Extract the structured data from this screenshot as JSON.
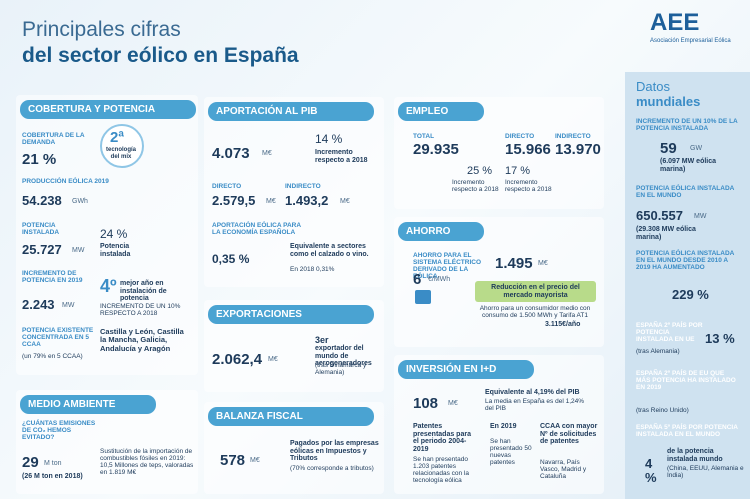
{
  "header": {
    "title_line1": "Principales cifras",
    "title_line2": "del sector eólico en España",
    "logo": "AEE",
    "logo_subtitle": "Asociación Empresarial Eólica"
  },
  "cobertura": {
    "title": "COBERTURA Y POTENCIA",
    "demand_label": "COBERTURA DE LA DEMANDA",
    "demand_value": "21 %",
    "mix_rank": "2ª",
    "mix_text": "tecnología del mix",
    "production_label": "PRODUCCIÓN EÓLICA 2019",
    "production_value": "54.238",
    "production_unit": "GWh",
    "power_label": "POTENCIA INSTALADA",
    "power_value": "25.727",
    "power_unit": "MW",
    "power_pct": "24 %",
    "power_pct_text": "Potencia instalada",
    "increase_label": "INCREMENTO DE POTENCIA EN 2019",
    "increase_value": "2.243",
    "increase_unit": "MW",
    "best_rank": "4º",
    "best_text": "mejor año en instalación de potencia",
    "increase_note": "INCREMENTO DE UN 10% RESPECTO A 2018",
    "existing_label": "POTENCIA EXISTENTE CONCENTRADA EN 5 CCAA",
    "existing_note": "(un 79% en 5 CCAA)",
    "regions": "Castilla y León, Castilla la Mancha, Galicia, Andalucía y Aragón"
  },
  "medio_ambiente": {
    "title": "MEDIO AMBIENTE",
    "question": "¿CUÁNTAS EMISIONES DE CO₂ HEMOS EVITADO?",
    "value": "29",
    "unit": "M ton",
    "previous": "(26 M ton en 2018)",
    "substitution": "Sustitución de la importación de combustibles fósiles en 2019: 10,5 Millones de teps, valoradas en 1.819 M€"
  },
  "pib": {
    "title": "APORTACIÓN AL PIB",
    "value": "4.073",
    "unit": "M€",
    "growth": "14 %",
    "growth_text": "Incremento respecto a 2018",
    "direct_label": "DIRECTO",
    "direct_value": "2.579,5",
    "direct_unit": "M€",
    "indirect_label": "INDIRECTO",
    "indirect_value": "1.493,2",
    "indirect_unit": "M€",
    "share_label": "APORTACIÓN EÓLICA PARA LA ECONOMÍA ESPAÑOLA",
    "share_value": "0,35 %",
    "share_text": "Equivalente a sectores como el calzado o vino.",
    "share_previous": "En 2018 0,31%"
  },
  "exportaciones": {
    "title": "EXPORTACIONES",
    "value": "2.062,4",
    "unit": "M€",
    "rank": "3er",
    "rank_text": "exportador del mundo de aerogeneradores",
    "rank_note": "(tras Dinamarca y Alemania)"
  },
  "balanza": {
    "title": "BALANZA FISCAL",
    "value": "578",
    "unit": "M€",
    "text": "Pagados por las empresas eólicas en Impuestos y Tributos",
    "note": "(70% corresponde a tributos)"
  },
  "empleo": {
    "title": "EMPLEO",
    "total_label": "TOTAL",
    "total_value": "29.935",
    "total_growth": "25 %",
    "total_growth_text": "Incremento respecto a 2018",
    "direct_label": "DIRECTO",
    "direct_value": "15.966",
    "indirect_label": "INDIRECTO",
    "indirect_value": "13.970",
    "direct_growth": "17 %",
    "direct_growth_text": "Incremento respecto a 2018"
  },
  "ahorro": {
    "title": "AHORRO",
    "label": "AHORRO PARA EL SISTEMA ELÉCTRICO DERIVADO DE LA EÓLICA",
    "value": "1.495",
    "unit": "M€",
    "price_value": "6",
    "price_unit": "€/MWh",
    "price_text": "Reducción en el precio del mercado mayorista",
    "consumer_text": "Ahorro para un consumidor medio con consumo de 1.500 MWh y Tarifa AT1",
    "consumer_value": "3.115€/año"
  },
  "inversion": {
    "title": "INVERSIÓN EN I+D",
    "value": "108",
    "unit": "M€",
    "equivalent": "Equivalente al 4,19% del PIB",
    "average": "La media en España es del 1,24% del PIB",
    "patents_label": "Patentes presentadas para el periodo 2004-2019",
    "patents_text": "Se han presentado 1.203 patentes relacionadas con la tecnología eólica",
    "year_label": "En 2019",
    "year_text": "Se han presentado 50 nuevas patentes",
    "regions_label": "CCAA con mayor Nº de solicitudes de patentes",
    "regions_text": "Navarra, País Vasco, Madrid y Cataluña"
  },
  "mundial": {
    "title_line1": "Datos",
    "title_line2": "mundiales",
    "increase_label": "INCREMENTO DE UN 10% DE LA POTENCIA INSTALADA",
    "increase_value": "59",
    "increase_unit": "GW",
    "increase_note": "(6.097 MW eólica marina)",
    "power_label": "POTENCIA EÓLICA INSTALADA EN EL MUNDO",
    "power_value": "650.557",
    "power_unit": "MW",
    "power_note": "(29.308 MW eólica marina)",
    "growth_label": "POTENCIA EÓLICA INSTALADA EN EL MUNDO DESDE 2010 A 2019 HA AUMENTADO",
    "growth_value": "229 %",
    "eu_label": "ESPAÑA 2º PAÍS POR POTENCIA INSTALADA EN UE",
    "eu_note": "(tras Alemania)",
    "eu_value": "13 %",
    "eu2019_label": "ESPAÑA 2º PAÍS DE EU QUE MÁS POTENCIA HA INSTALADO EN 2019",
    "eu2019_note": "(tras Reino Unido)",
    "world_label": "ESPAÑA 5º PAÍS POR POTENCIA INSTALADA EN EL MUNDO",
    "world_value": "4 %",
    "world_text": "de la potencia instalada mundo",
    "world_note": "(China, EEUU, Alemania e India)"
  }
}
